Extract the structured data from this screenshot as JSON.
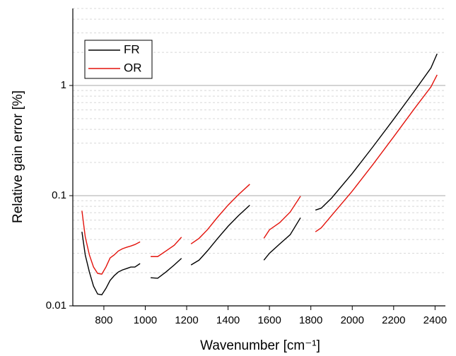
{
  "chart_data": {
    "type": "line",
    "x_label": "Wavenumber [cm⁻¹]",
    "y_label": "Relative gain error [%]",
    "x": [
      694,
      710,
      730,
      750,
      770,
      790,
      810,
      830,
      850,
      870,
      890,
      910,
      930,
      950,
      975,
      1000,
      1026,
      1060,
      1100,
      1140,
      1175,
      1198,
      1221,
      1260,
      1300,
      1350,
      1400,
      1450,
      1505,
      1540,
      1573,
      1600,
      1650,
      1700,
      1750,
      1786,
      1822,
      1850,
      1900,
      2000,
      2100,
      2200,
      2300,
      2380,
      2410
    ],
    "series": [
      {
        "name": "FR",
        "color": "#000000",
        "values": [
          0.047,
          0.029,
          0.0203,
          0.0151,
          0.0128,
          0.0126,
          0.0144,
          0.017,
          0.0188,
          0.0203,
          0.0212,
          0.0218,
          0.0225,
          0.0225,
          0.0242,
          null,
          0.018,
          0.0178,
          0.0203,
          0.0235,
          0.027,
          null,
          0.0235,
          0.026,
          0.0315,
          0.041,
          0.0527,
          0.0658,
          0.082,
          null,
          0.026,
          0.03,
          0.0365,
          0.0442,
          0.063,
          null,
          0.074,
          0.077,
          0.095,
          0.159,
          0.278,
          0.494,
          0.889,
          1.44,
          1.94
        ]
      },
      {
        "name": "OR",
        "color": "#e3120b",
        "values": [
          0.073,
          0.0423,
          0.029,
          0.0225,
          0.0197,
          0.0194,
          0.0225,
          0.0272,
          0.029,
          0.0315,
          0.033,
          0.034,
          0.0349,
          0.036,
          0.0381,
          null,
          0.028,
          0.028,
          0.0315,
          0.0355,
          0.042,
          null,
          0.0365,
          0.041,
          0.049,
          0.064,
          0.082,
          0.102,
          0.127,
          null,
          0.041,
          0.049,
          0.057,
          0.071,
          0.099,
          null,
          0.047,
          0.051,
          0.066,
          0.11,
          0.192,
          0.342,
          0.615,
          0.97,
          1.25
        ]
      }
    ],
    "xlim": [
      650,
      2450
    ],
    "xticks": [
      800,
      1000,
      1200,
      1400,
      1600,
      1800,
      2000,
      2200,
      2400
    ],
    "ylim": [
      0.01,
      5
    ],
    "yticks": [
      0.01,
      0.1,
      1
    ],
    "y_scale": "log",
    "grid": true,
    "minor_grid": true,
    "legend": "upper left"
  }
}
